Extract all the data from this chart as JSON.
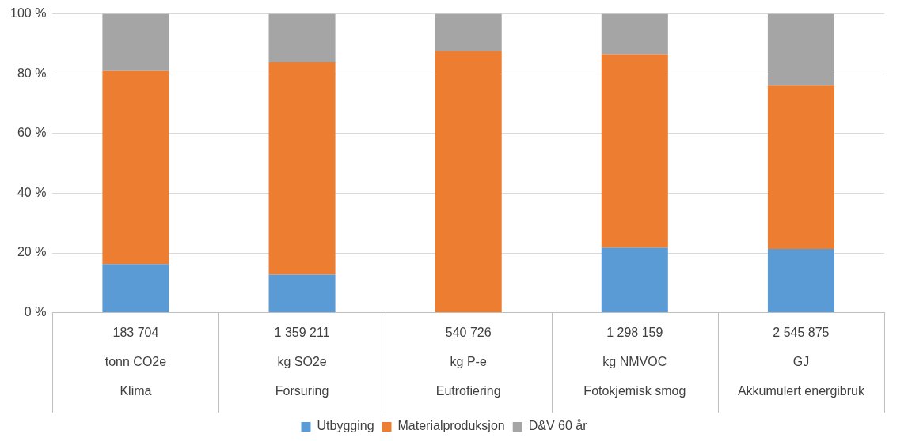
{
  "chart_data": {
    "type": "bar",
    "stacked": true,
    "categories": [
      "183 704\ntonn CO2e\nKlima",
      "1 359 211\nkg SO2e\nForsuring",
      "540 726\nkg P-e\nEutrofiering",
      "1 298 159\nkg NMVOC\nFotokjemisk smog",
      "2 545 875\nGJ\nAkkumulert energibruk"
    ],
    "series": [
      {
        "name": "Utbygging",
        "color": "#5b9bd5",
        "values": [
          16.2,
          12.7,
          0,
          21.8,
          21.3
        ]
      },
      {
        "name": "Materialproduksjon",
        "color": "#ed7d31",
        "values": [
          64.7,
          71.1,
          87.6,
          64.7,
          54.7
        ]
      },
      {
        "name": "D&V 60 år",
        "color": "#a5a5a5",
        "values": [
          19.1,
          16.2,
          12.4,
          13.5,
          24.0
        ]
      }
    ],
    "ylim": [
      0,
      100
    ],
    "yticks": [
      {
        "value": 0,
        "label": "0 %"
      },
      {
        "value": 20,
        "label": "20 %"
      },
      {
        "value": 40,
        "label": "40 %"
      },
      {
        "value": 60,
        "label": "60 %"
      },
      {
        "value": 80,
        "label": "80 %"
      },
      {
        "value": 100,
        "label": "100 %"
      }
    ],
    "grid": "y",
    "legend": "bottom"
  }
}
